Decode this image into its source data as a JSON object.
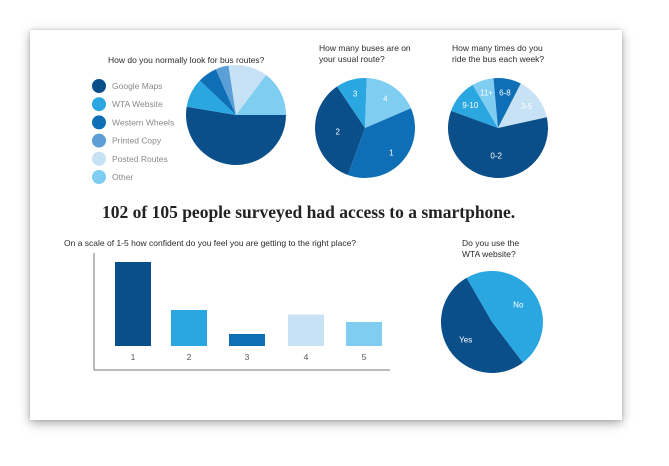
{
  "headline": "102 of 105 people surveyed had access to a smartphone.",
  "chart_data": [
    {
      "type": "pie",
      "title": "How do you normally look for bus routes?",
      "show_slice_labels": false,
      "legend_placement": "left",
      "categories": [
        "Google Maps",
        "WTA Website",
        "Western Wheels",
        "Printed Copy",
        "Posted Routes",
        "Other"
      ],
      "values": [
        50,
        9,
        6,
        4,
        12,
        14
      ],
      "colors": [
        "#0b4f8a",
        "#2aa7e0",
        "#0f6fb6",
        "#5b9fd6",
        "#c8e2f5",
        "#7fcdf0"
      ]
    },
    {
      "type": "pie",
      "title": "How many buses are on your usual route?",
      "title_lines": [
        "How many buses are on",
        "your usual route?"
      ],
      "show_slice_labels": true,
      "categories": [
        "2",
        "3",
        "4",
        "1"
      ],
      "values": [
        35,
        10,
        18,
        37
      ],
      "colors": [
        "#0b4f8a",
        "#2aa7e0",
        "#7fcdf0",
        "#0f6fb6"
      ]
    },
    {
      "type": "pie",
      "title": "How many times do you ride the bus each week?",
      "title_lines": [
        "How many times do you",
        "ride the bus each week?"
      ],
      "show_slice_labels": true,
      "categories": [
        "9-10",
        "11+",
        "6-8",
        "3-5",
        "0-2"
      ],
      "values": [
        11,
        7,
        9,
        14,
        59
      ],
      "colors": [
        "#2aa7e0",
        "#7fcdf0",
        "#0f6fb6",
        "#c8e2f5",
        "#0b4f8a"
      ]
    },
    {
      "type": "bar",
      "title": "On a scale of 1-5 how confident do you feel you are getting to the right place?",
      "categories": [
        "1",
        "2",
        "3",
        "4",
        "5"
      ],
      "values": [
        56,
        24,
        8,
        21,
        16
      ],
      "colors": [
        "#0b4f8a",
        "#2aa7e0",
        "#0f6fb6",
        "#c8e2f5",
        "#7fcdf0"
      ],
      "ylim": [
        0,
        60
      ],
      "grid": false
    },
    {
      "type": "pie",
      "title": "Do you use the WTA website?",
      "title_lines": [
        "Do you use the",
        "WTA website?"
      ],
      "show_slice_labels": true,
      "categories": [
        "No",
        "Yes"
      ],
      "values": [
        48,
        52
      ],
      "colors": [
        "#2aa7e0",
        "#0b4f8a"
      ]
    }
  ]
}
